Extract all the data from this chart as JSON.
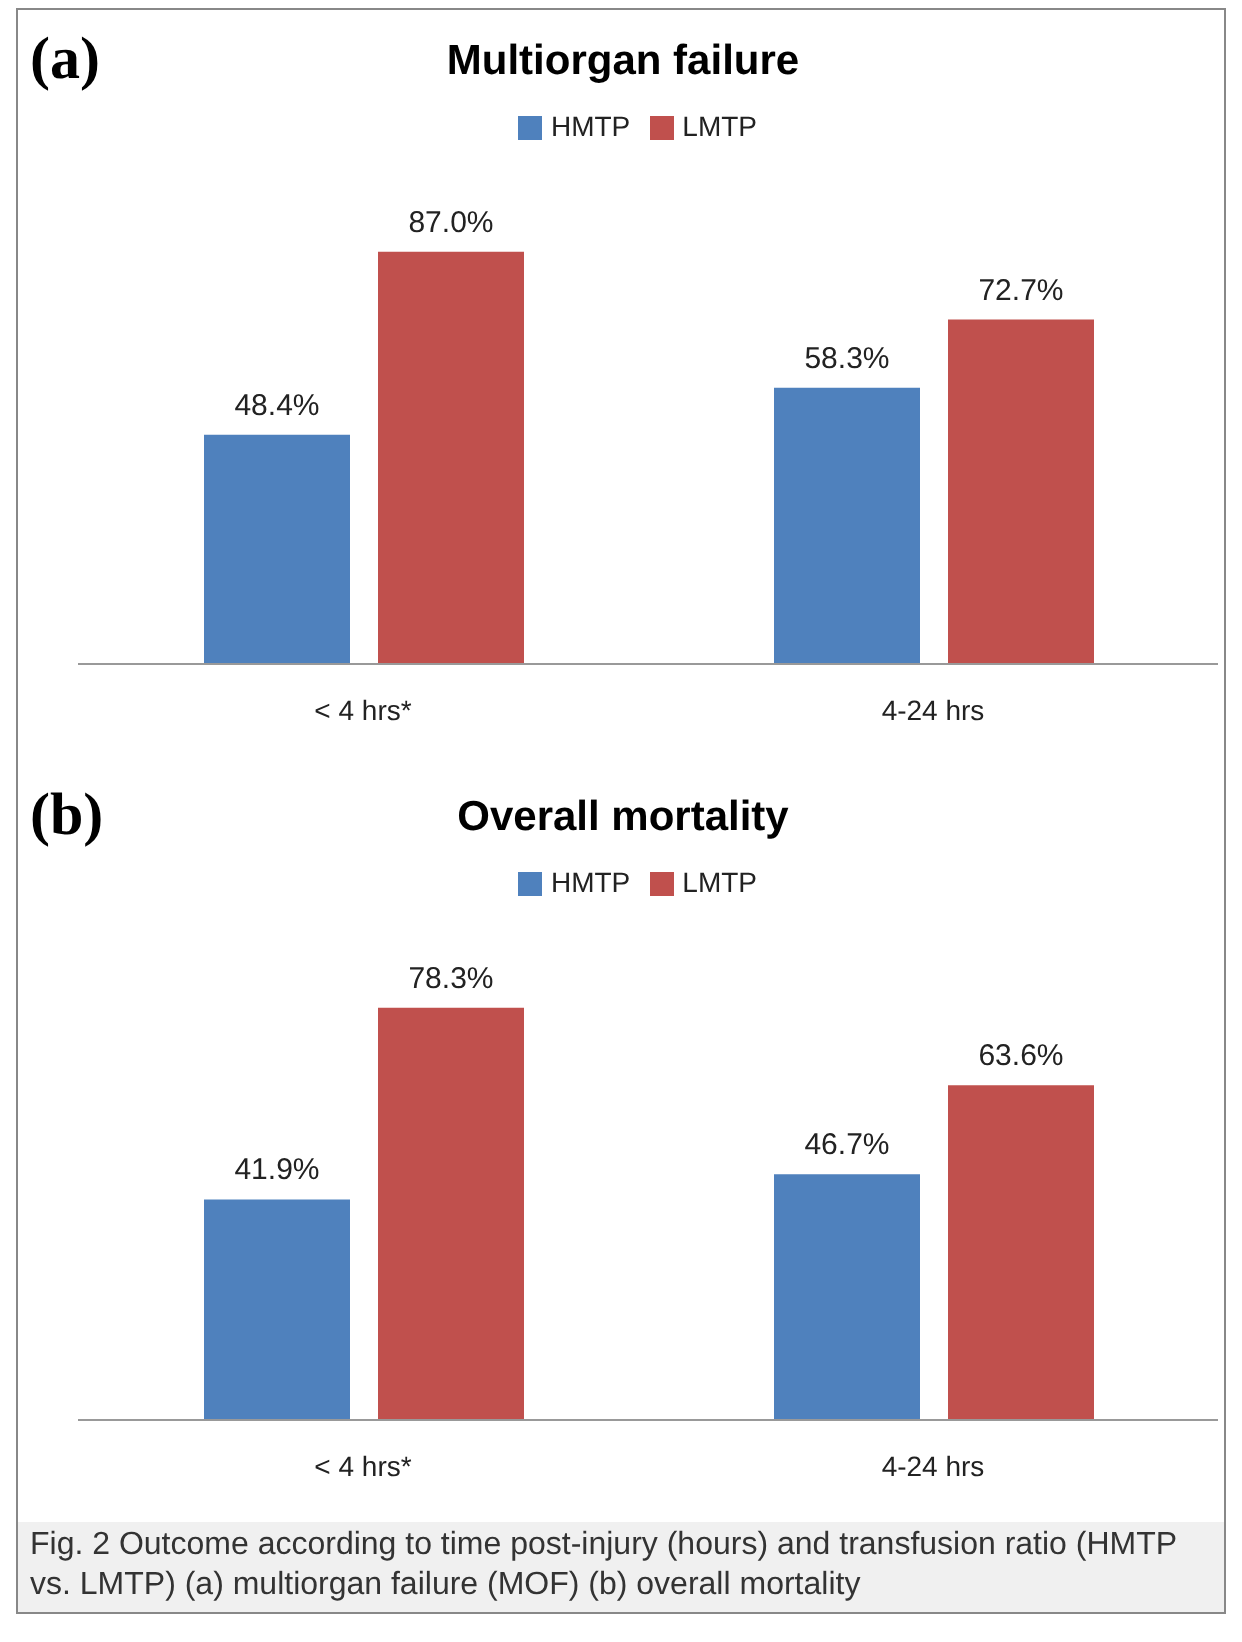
{
  "chart_data": [
    {
      "type": "bar",
      "title": "Multiorgan failure",
      "annotations": [
        "(a)"
      ],
      "categories": [
        "< 4 hrs*",
        "4-24 hrs"
      ],
      "legend": "top",
      "series": [
        {
          "name": "HMTP",
          "color": "#4f81bd",
          "values": [
            48.4,
            58.3
          ],
          "value_labels": [
            "48.4%",
            "58.3%"
          ]
        },
        {
          "name": "LMTP",
          "color": "#c0504d",
          "values": [
            87.0,
            72.7
          ],
          "value_labels": [
            "87.0%",
            "72.7%"
          ]
        }
      ]
    },
    {
      "type": "bar",
      "title": "Overall mortality",
      "annotations": [
        "(b)",
        "Fig. 2 Outcome according to time post-injury (hours) and transfusion ratio (HMTP vs. LMTP) (a) multiorgan failure (MOF) (b) overall mortality"
      ],
      "categories": [
        "< 4 hrs*",
        "4-24 hrs"
      ],
      "legend": "top",
      "series": [
        {
          "name": "HMTP",
          "color": "#4f81bd",
          "values": [
            41.9,
            46.7
          ],
          "value_labels": [
            "41.9%",
            "46.7%"
          ]
        },
        {
          "name": "LMTP",
          "color": "#c0504d",
          "values": [
            78.3,
            63.6
          ],
          "value_labels": [
            "78.3%",
            "63.6%"
          ]
        }
      ]
    }
  ]
}
